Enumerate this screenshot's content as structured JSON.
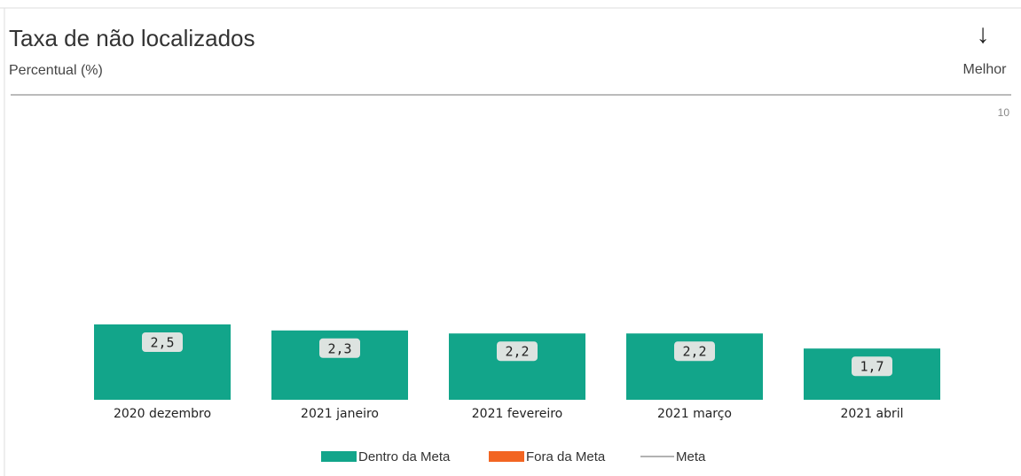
{
  "chart_data": {
    "type": "bar",
    "title": "Taxa de não localizados",
    "subtitle": "Percentual (%)",
    "direction_arrow": "↓",
    "direction_label": "Melhor",
    "categories": [
      "2020 dezembro",
      "2021 janeiro",
      "2021 fevereiro",
      "2021 março",
      "2021 abril"
    ],
    "series": [
      {
        "name": "Dentro da Meta",
        "color": "#12a58a",
        "values": [
          2.5,
          2.3,
          2.2,
          2.2,
          1.7
        ],
        "value_labels": [
          "2,5",
          "2,3",
          "2,2",
          "2,2",
          "1,7"
        ]
      },
      {
        "name": "Fora da Meta",
        "color": "#f26522",
        "values": [
          null,
          null,
          null,
          null,
          null
        ]
      },
      {
        "name": "Meta",
        "color": "#999999",
        "mark": "line",
        "values": [
          null,
          null,
          null,
          null,
          null
        ]
      }
    ],
    "ylim": [
      0,
      10
    ],
    "yticks": [
      10
    ],
    "grid": false
  }
}
